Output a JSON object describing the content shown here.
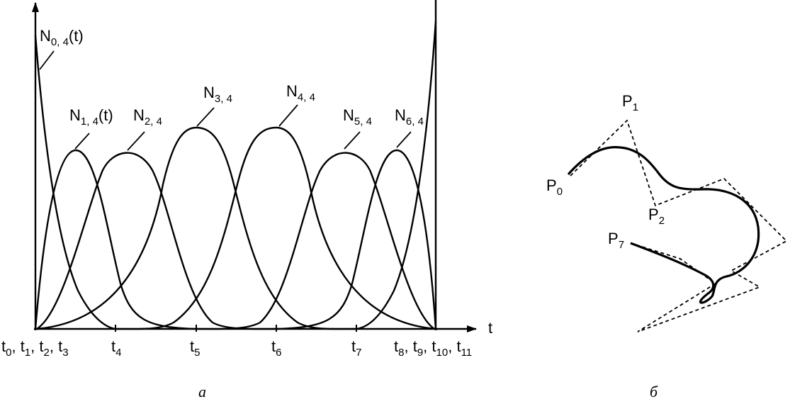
{
  "panel_a": {
    "caption": "а",
    "axis_t_label": "t",
    "basis_labels": [
      {
        "base": "N",
        "sub": "0, 4",
        "suffix": "(t)"
      },
      {
        "base": "N",
        "sub": "1, 4",
        "suffix": "(t)"
      },
      {
        "base": "N",
        "sub": "2, 4",
        "suffix": ""
      },
      {
        "base": "N",
        "sub": "3, 4",
        "suffix": ""
      },
      {
        "base": "N",
        "sub": "4, 4",
        "suffix": ""
      },
      {
        "base": "N",
        "sub": "5, 4",
        "suffix": ""
      },
      {
        "base": "N",
        "sub": "6, 4",
        "suffix": ""
      }
    ],
    "knot_labels": [
      {
        "parts": [
          [
            "t",
            "0"
          ],
          [
            "t",
            "1"
          ],
          [
            "t",
            "2"
          ],
          [
            "t",
            "3"
          ]
        ]
      },
      {
        "parts": [
          [
            "t",
            "4"
          ]
        ]
      },
      {
        "parts": [
          [
            "t",
            "5"
          ]
        ]
      },
      {
        "parts": [
          [
            "t",
            "6"
          ]
        ]
      },
      {
        "parts": [
          [
            "t",
            "7"
          ]
        ]
      },
      {
        "parts": [
          [
            "t",
            "8"
          ],
          [
            "t",
            "9"
          ],
          [
            "t",
            "10"
          ],
          [
            "t",
            "11"
          ]
        ]
      }
    ]
  },
  "panel_b": {
    "caption": "б",
    "point_labels": [
      {
        "base": "P",
        "sub": "0"
      },
      {
        "base": "P",
        "sub": "1"
      },
      {
        "base": "P",
        "sub": "2"
      },
      {
        "base": "P",
        "sub": "7"
      }
    ]
  }
}
